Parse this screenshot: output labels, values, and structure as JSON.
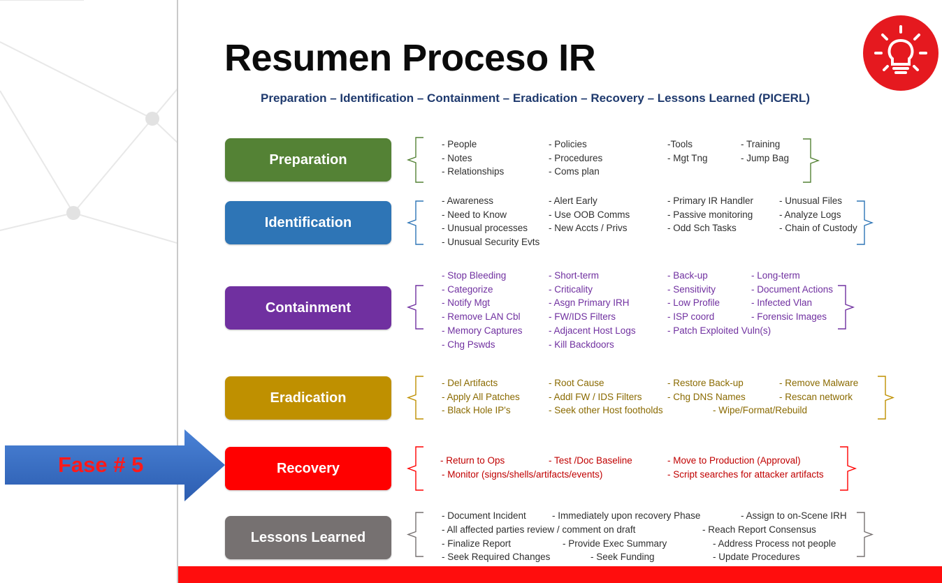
{
  "title": "Resumen Proceso IR",
  "subtitle": "Preparation – Identification – Containment – Eradication – Recovery – Lessons Learned (PICERL)",
  "callout": {
    "label": "Fase # 5"
  },
  "colors": {
    "preparation": "#4a7a34",
    "identification": "#2f73b5",
    "containment": "#6f30a0",
    "eradication": "#bf9000",
    "recovery": "#ff0000",
    "lessons": "#737373",
    "bulb": "#e5191f",
    "footer": "#ff0d0d",
    "arrow": "#3a6fc4"
  },
  "phases": [
    {
      "key": "preparation",
      "label": "Preparation",
      "color": "#548235",
      "text_color": "#2f2f2f",
      "rows": [
        [
          "- People",
          "- Policies",
          "-Tools",
          "- Training"
        ],
        [
          "- Notes",
          "- Procedures",
          "- Mgt Tng",
          "- Jump Bag"
        ],
        [
          "- Relationships",
          "- Coms plan",
          "",
          ""
        ]
      ]
    },
    {
      "key": "identification",
      "label": "Identification",
      "color": "#2e75b6",
      "text_color": "#2f2f2f",
      "rows": [
        [
          "- Awareness",
          "- Alert Early",
          "- Primary IR Handler",
          "- Unusual Files"
        ],
        [
          "- Need to Know",
          "- Use OOB Comms",
          "- Passive monitoring",
          "- Analyze Logs"
        ],
        [
          "- Unusual processes",
          "- New Accts / Privs",
          "- Odd Sch Tasks",
          "- Chain of Custody"
        ],
        [
          "- Unusual Security Evts",
          "",
          "",
          ""
        ]
      ]
    },
    {
      "key": "containment",
      "label": "Containment",
      "color": "#7030a0",
      "text_color": "#7030a0",
      "rows": [
        [
          "- Stop Bleeding",
          "- Short-term",
          "- Back-up",
          "- Long-term"
        ],
        [
          "- Categorize",
          "- Criticality",
          "- Sensitivity",
          "- Document Actions"
        ],
        [
          "- Notify Mgt",
          "- Asgn Primary IRH",
          "- Low Profile",
          "- Infected Vlan"
        ],
        [
          "- Remove LAN Cbl",
          "- FW/IDS Filters",
          "- ISP coord",
          "- Forensic Images"
        ],
        [
          "- Memory Captures",
          "- Adjacent Host Logs",
          "- Patch Exploited Vuln(s)",
          ""
        ],
        [
          "- Chg Pswds",
          "- Kill Backdoors",
          "",
          ""
        ]
      ]
    },
    {
      "key": "eradication",
      "label": "Eradication",
      "color": "#bf9000",
      "text_color": "#8a6a00",
      "rows": [
        [
          "- Del Artifacts",
          "- Root Cause",
          "- Restore Back-up",
          "- Remove Malware"
        ],
        [
          "- Apply All Patches",
          "- Addl FW / IDS Filters",
          "- Chg DNS Names",
          "- Rescan network"
        ],
        [
          "- Black Hole IP's",
          "- Seek other Host footholds",
          "- Wipe/Format/Rebuild",
          ""
        ]
      ]
    },
    {
      "key": "recovery",
      "label": "Recovery",
      "color": "#ff0000",
      "text_color": "#c00000",
      "rows": [
        [
          "- Return to Ops",
          "- Test /Doc Baseline",
          "- Move to Production (Approval)",
          ""
        ],
        [
          "- Monitor (signs/shells/artifacts/events)",
          "",
          "- Script searches for attacker artifacts",
          ""
        ]
      ]
    },
    {
      "key": "lessons",
      "label": "Lessons Learned",
      "color": "#767171",
      "text_color": "#2f2f2f",
      "rows": [
        [
          "- Document Incident",
          "- Immediately upon recovery Phase",
          "- Assign to on-Scene IRH",
          ""
        ],
        [
          "- All affected parties review / comment on draft",
          "",
          "- Reach Report Consensus",
          ""
        ],
        [
          "- Finalize Report",
          "- Provide Exec Summary",
          "- Address Process not people",
          ""
        ],
        [
          "- Seek Required Changes",
          "- Seek Funding",
          "- Update Procedures",
          ""
        ]
      ]
    }
  ]
}
